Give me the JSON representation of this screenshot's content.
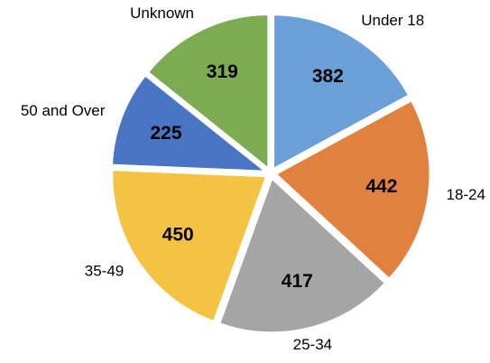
{
  "chart_data": {
    "type": "pie",
    "categories": [
      "Under 18",
      "18-24",
      "25-34",
      "35-49",
      "50 and Over",
      "Unknown"
    ],
    "values": [
      382,
      442,
      417,
      450,
      225,
      319
    ],
    "colors": [
      "#6a9fd8",
      "#e0813f",
      "#a5a5a5",
      "#f4c343",
      "#4a74c4",
      "#7cab52"
    ],
    "start_angle": 0,
    "direction": "clockwise"
  }
}
